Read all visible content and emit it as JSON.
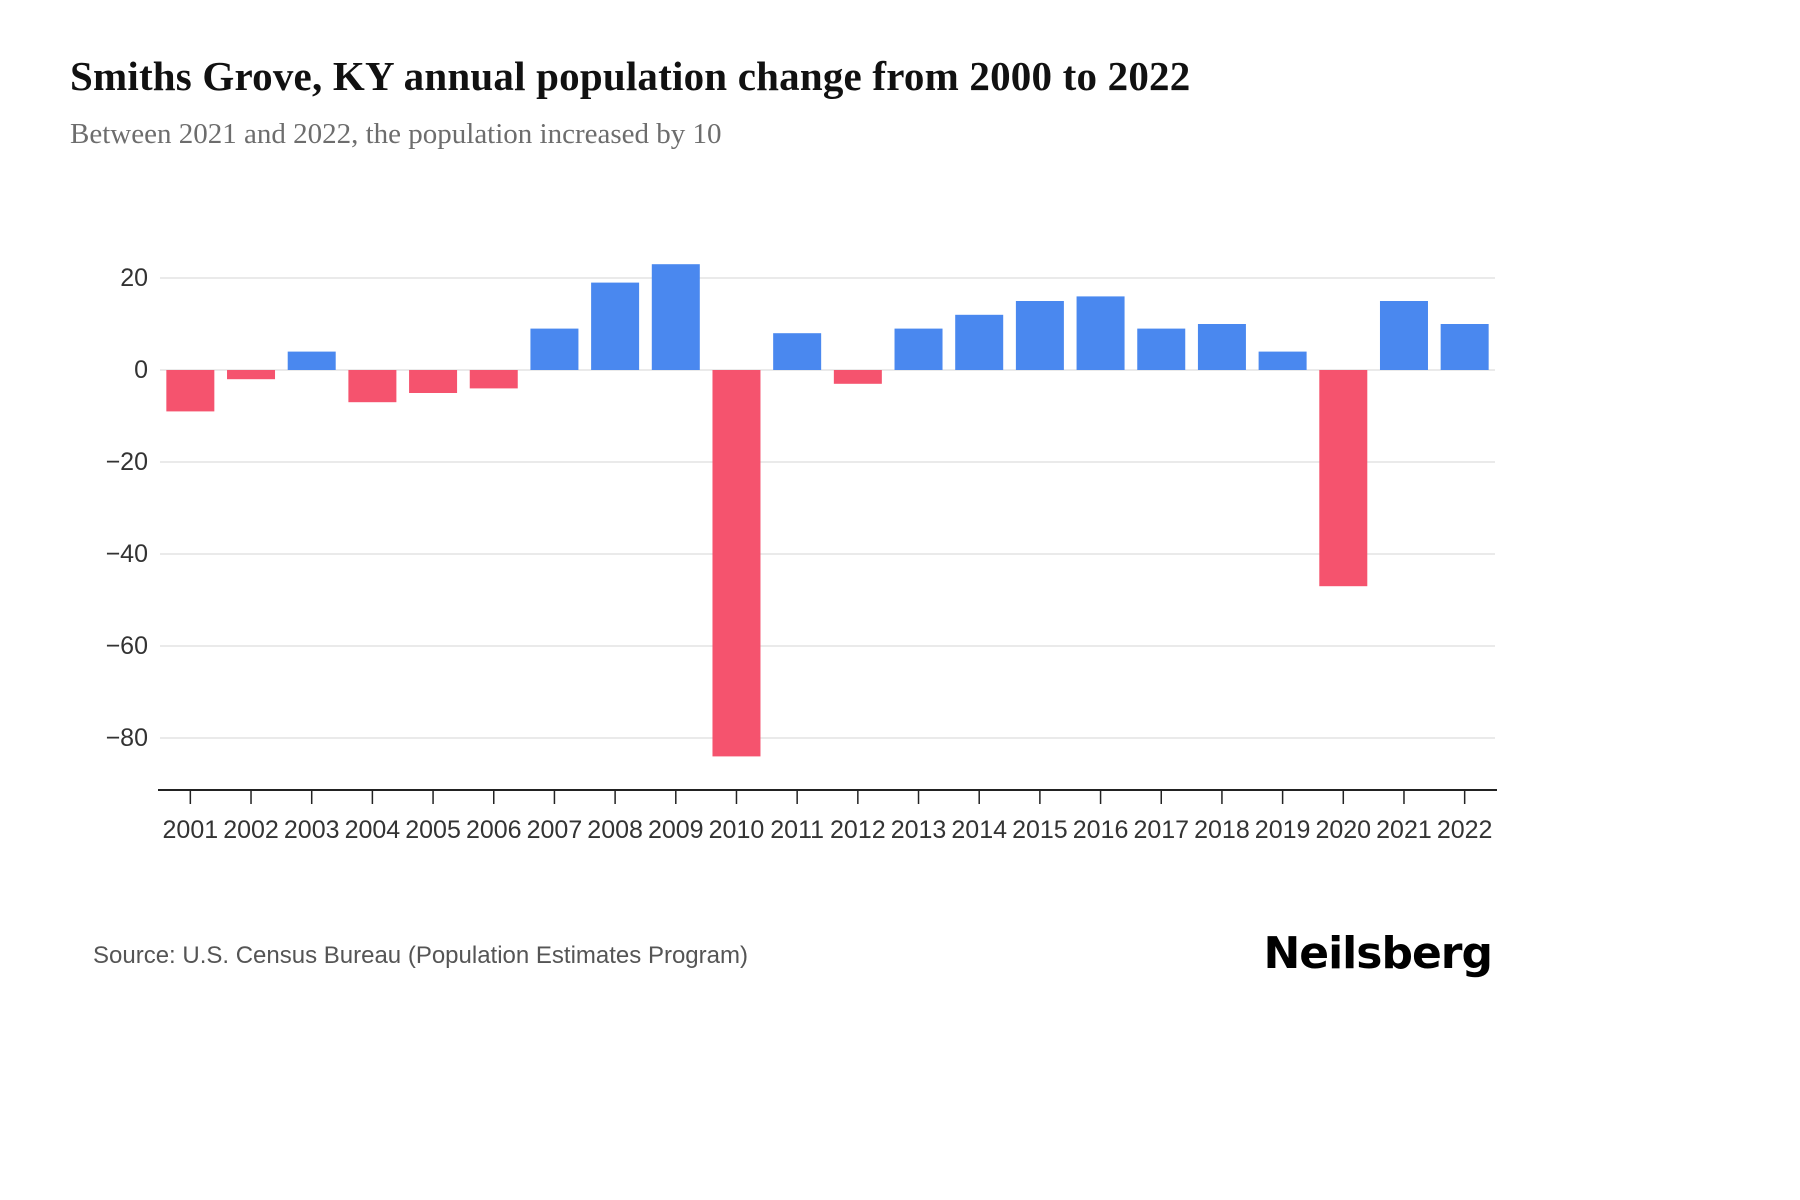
{
  "header": {
    "title": "Smiths Grove, KY annual population change from 2000 to 2022",
    "subtitle": "Between 2021 and 2022, the population increased by 10"
  },
  "chart_data": {
    "type": "bar",
    "title": "Smiths Grove, KY annual population change from 2000 to 2022",
    "subtitle": "Between 2021 and 2022, the population increased by 10",
    "categories": [
      "2001",
      "2002",
      "2003",
      "2004",
      "2005",
      "2006",
      "2007",
      "2008",
      "2009",
      "2010",
      "2011",
      "2012",
      "2013",
      "2014",
      "2015",
      "2016",
      "2017",
      "2018",
      "2019",
      "2020",
      "2021",
      "2022"
    ],
    "values": [
      -9,
      -2,
      4,
      -7,
      -5,
      -4,
      9,
      19,
      23,
      -84,
      8,
      -3,
      9,
      12,
      15,
      16,
      9,
      10,
      4,
      -47,
      15,
      10
    ],
    "yticks": [
      20,
      0,
      -20,
      -40,
      -60,
      -80
    ],
    "ylim": [
      -90,
      28
    ],
    "xlabel": "",
    "ylabel": "",
    "grid": true,
    "legend": "none",
    "positive_color": "#4a88ef",
    "negative_color": "#f5536e",
    "gridline_color": "#e4e4e4",
    "axis_color": "#222222",
    "tick_label_color": "#333333"
  },
  "footer": {
    "source": "Source: U.S. Census Bureau (Population Estimates Program)",
    "logo": "Neilsberg"
  }
}
